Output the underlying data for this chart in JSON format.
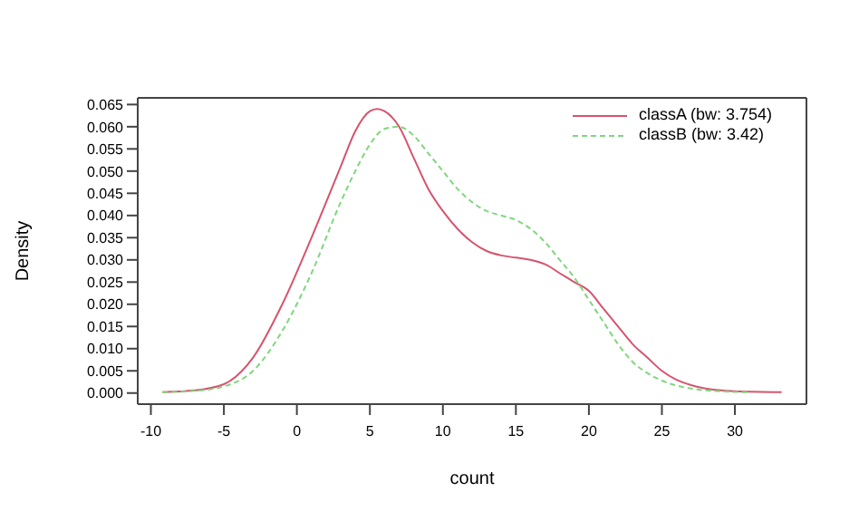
{
  "chart_data": {
    "type": "line",
    "xlabel": "count",
    "ylabel": "Density",
    "legend": "top right",
    "grid": false,
    "marker": "none",
    "xlim": [
      -10.9,
      34.9
    ],
    "xticks": [
      -10,
      -5,
      0,
      5,
      10,
      15,
      20,
      25,
      30
    ],
    "ylim": [
      -0.0025,
      0.0665
    ],
    "yticks": [
      {
        "value": 0,
        "label": "0.000"
      },
      {
        "value": 0.005,
        "label": "0.005"
      },
      {
        "value": 0.01,
        "label": "0.010"
      },
      {
        "value": 0.015,
        "label": "0.015"
      },
      {
        "value": 0.02,
        "label": "0.020"
      },
      {
        "value": 0.025,
        "label": "0.025"
      },
      {
        "value": 0.03,
        "label": "0.030"
      },
      {
        "value": 0.035,
        "label": "0.035"
      },
      {
        "value": 0.04,
        "label": "0.040"
      },
      {
        "value": 0.045,
        "label": "0.045"
      },
      {
        "value": 0.05,
        "label": "0.050"
      },
      {
        "value": 0.055,
        "label": "0.055"
      },
      {
        "value": 0.06,
        "label": "0.060"
      },
      {
        "value": 0.065,
        "label": "0.065"
      }
    ],
    "series": [
      {
        "name": "classA (bw: 3.754)",
        "color": "#d6546e",
        "line_style": "solid",
        "x": [
          -9.2,
          -7,
          -5,
          -3,
          -1,
          1,
          3,
          4,
          5,
          5.5,
          6,
          7,
          8,
          9,
          10,
          11,
          12,
          13,
          14,
          15,
          16,
          17,
          18,
          19,
          20,
          21,
          22,
          23,
          24,
          25,
          26,
          27,
          28,
          30,
          33.2
        ],
        "values": [
          0.0002,
          0.0006,
          0.002,
          0.008,
          0.02,
          0.035,
          0.051,
          0.059,
          0.0635,
          0.064,
          0.0635,
          0.06,
          0.053,
          0.046,
          0.041,
          0.037,
          0.034,
          0.032,
          0.031,
          0.0305,
          0.03,
          0.029,
          0.027,
          0.025,
          0.023,
          0.019,
          0.015,
          0.011,
          0.008,
          0.005,
          0.003,
          0.0018,
          0.001,
          0.0004,
          0.0002
        ]
      },
      {
        "name": "classB (bw: 3.42)",
        "color": "#7fd67f",
        "line_style": "dashed",
        "x": [
          -9.2,
          -7,
          -5,
          -3,
          -1,
          1,
          3,
          4,
          5,
          6,
          7,
          8,
          9,
          10,
          11,
          12,
          13,
          14,
          15,
          16,
          17,
          18,
          19,
          20,
          21,
          22,
          23,
          24,
          25,
          27,
          29,
          31
        ],
        "values": [
          0.0002,
          0.0005,
          0.0015,
          0.005,
          0.014,
          0.027,
          0.043,
          0.05,
          0.056,
          0.0595,
          0.06,
          0.058,
          0.054,
          0.05,
          0.046,
          0.043,
          0.041,
          0.04,
          0.039,
          0.037,
          0.034,
          0.03,
          0.026,
          0.021,
          0.016,
          0.011,
          0.007,
          0.0045,
          0.0028,
          0.001,
          0.0004,
          0.0002
        ]
      }
    ]
  }
}
